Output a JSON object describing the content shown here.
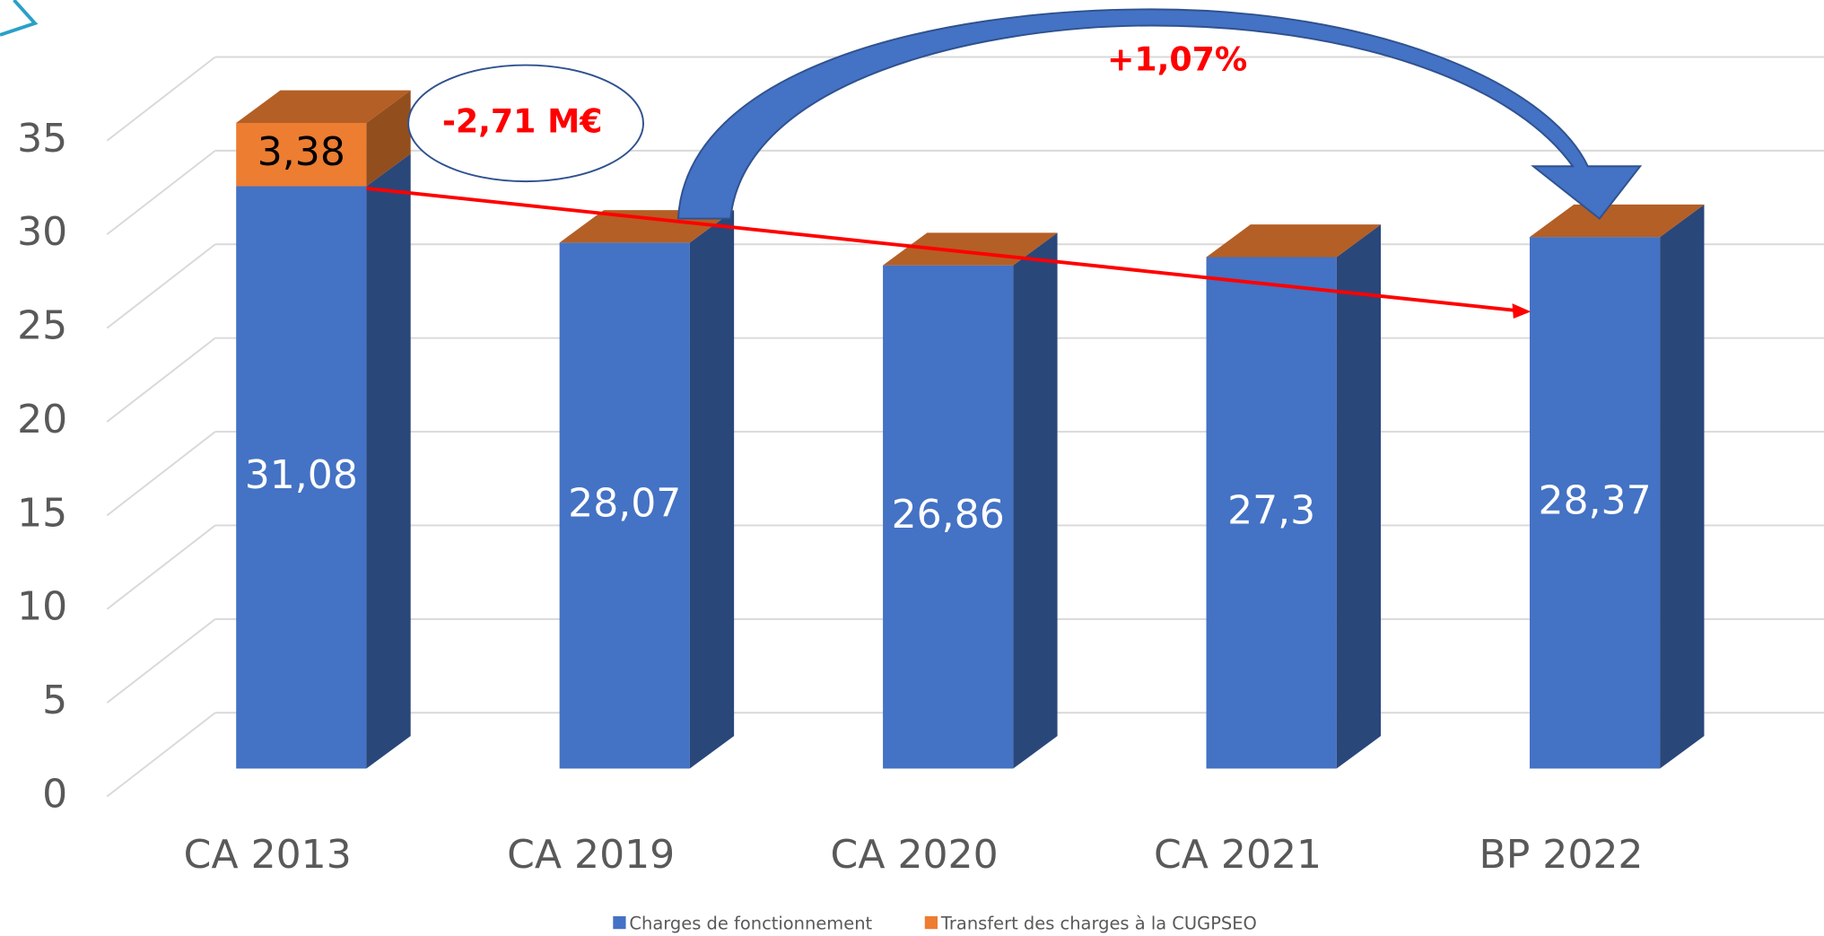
{
  "chart_data": {
    "type": "bar3d_stacked",
    "categories": [
      "CA 2013",
      "CA 2019",
      "CA 2020",
      "CA 2021",
      "BP 2022"
    ],
    "series": [
      {
        "name": "Charges de fonctionnement",
        "color": "#4472c4",
        "values": [
          31.08,
          28.07,
          26.86,
          27.3,
          28.37
        ],
        "value_labels": [
          "31,08",
          "28,07",
          "26,86",
          "27,3",
          "28,37"
        ]
      },
      {
        "name": "Transfert des charges à la CUGPSEO",
        "color": "#ed7d31",
        "values": [
          3.38,
          0,
          0,
          0,
          0
        ],
        "value_labels": [
          "3,38",
          null,
          null,
          null,
          null
        ]
      }
    ],
    "ylim": [
      0,
      35
    ],
    "yticks": [
      0,
      5,
      10,
      15,
      20,
      25,
      30,
      35
    ],
    "grid": true,
    "legend": "bottom",
    "annotations": [
      "-2,71 M€",
      "+1,07%"
    ]
  }
}
